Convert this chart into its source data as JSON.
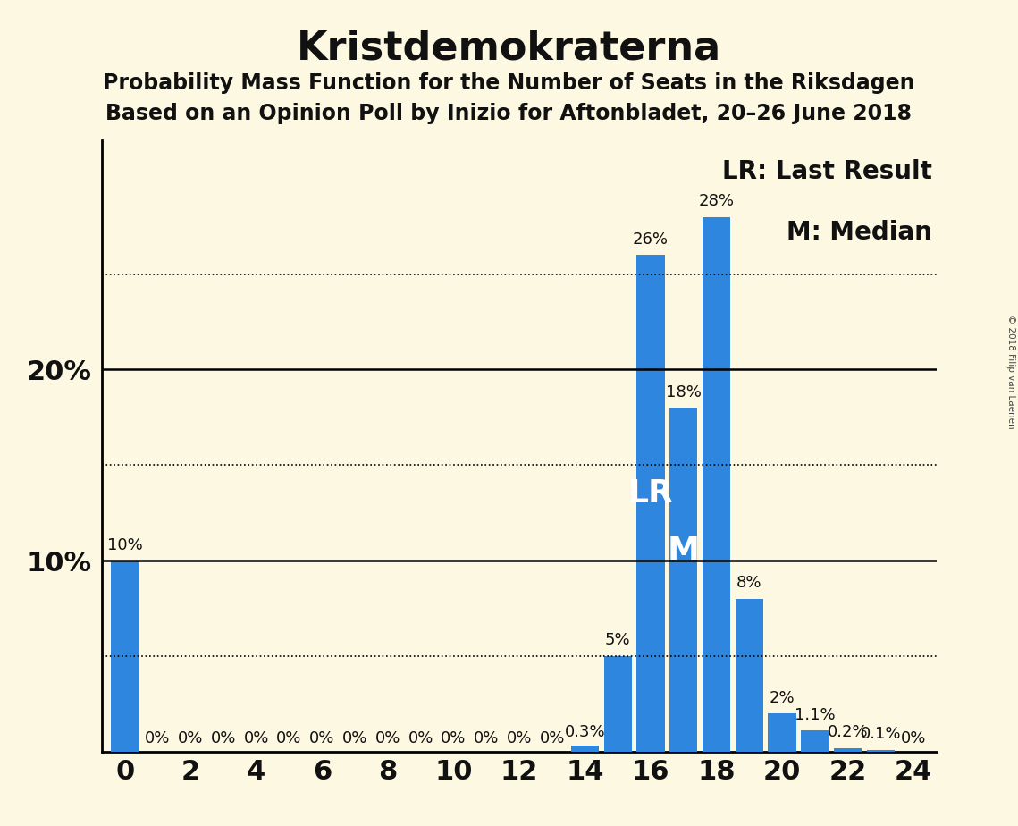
{
  "title": "Kristdemokraterna",
  "subtitle1": "Probability Mass Function for the Number of Seats in the Riksdagen",
  "subtitle2": "Based on an Opinion Poll by Inizio for Aftonbladet, 20–26 June 2018",
  "copyright": "© 2018 Filip van Laenen",
  "background_color": "#fdf8e1",
  "bar_color": "#2e86de",
  "seats": [
    0,
    1,
    2,
    3,
    4,
    5,
    6,
    7,
    8,
    9,
    10,
    11,
    12,
    13,
    14,
    15,
    16,
    17,
    18,
    19,
    20,
    21,
    22,
    23,
    24
  ],
  "probabilities": [
    10.0,
    0.0,
    0.0,
    0.0,
    0.0,
    0.0,
    0.0,
    0.0,
    0.0,
    0.0,
    0.0,
    0.0,
    0.0,
    0.0,
    0.3,
    5.0,
    26.0,
    18.0,
    28.0,
    8.0,
    2.0,
    1.1,
    0.2,
    0.1,
    0.0
  ],
  "labels": [
    "10%",
    "0%",
    "0%",
    "0%",
    "0%",
    "0%",
    "0%",
    "0%",
    "0%",
    "0%",
    "0%",
    "0%",
    "0%",
    "0%",
    "0.3%",
    "5%",
    "26%",
    "18%",
    "28%",
    "8%",
    "2%",
    "1.1%",
    "0.2%",
    "0.1%",
    "0%"
  ],
  "LR_seat": 16,
  "M_seat": 17,
  "xlim": [
    -0.7,
    24.7
  ],
  "ylim": [
    0,
    32
  ],
  "solid_yticks": [
    10,
    20
  ],
  "dotted_yticks": [
    5,
    15,
    25
  ],
  "legend_LR": "LR: Last Result",
  "legend_M": "M: Median",
  "title_fontsize": 32,
  "subtitle_fontsize": 17,
  "axis_tick_fontsize": 22,
  "bar_label_fontsize": 13,
  "annotation_fontsize": 26,
  "legend_fontsize": 20,
  "ytick_positions": [
    10,
    20
  ],
  "ytick_labels": [
    "10%",
    "20%"
  ]
}
